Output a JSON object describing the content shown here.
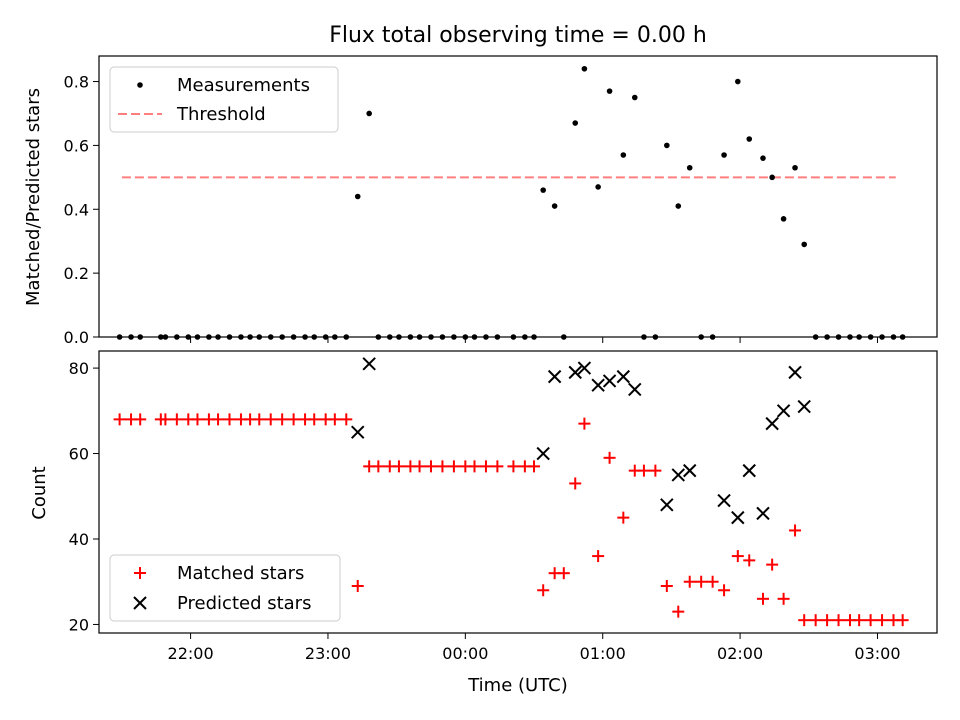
{
  "chart_data": [
    {
      "type": "scatter",
      "title": "Flux total observing time = 0.00 h",
      "xlabel": "",
      "ylabel": "Matched/Predicted stars",
      "ylim": [
        0,
        0.88
      ],
      "yticks": [
        "0.0",
        "0.2",
        "0.4",
        "0.6",
        "0.8"
      ],
      "xlim": [
        "21:20",
        "03:26"
      ],
      "legend_position": "upper left",
      "threshold": {
        "name": "Threshold",
        "value": 0.5,
        "x_range": [
          "21:30",
          "03:08"
        ],
        "color": "#ff7f7f",
        "style": "dashed"
      },
      "series": [
        {
          "name": "Measurements",
          "color": "#000000",
          "marker": "dot",
          "points": [
            [
              "21:29",
              0
            ],
            [
              "21:34",
              0
            ],
            [
              "21:38",
              0
            ],
            [
              "21:47",
              0
            ],
            [
              "21:49",
              0
            ],
            [
              "21:54",
              0
            ],
            [
              "21:59",
              0
            ],
            [
              "22:03",
              0
            ],
            [
              "22:08",
              0
            ],
            [
              "22:12",
              0
            ],
            [
              "22:17",
              0
            ],
            [
              "22:22",
              0
            ],
            [
              "22:26",
              0
            ],
            [
              "22:30",
              0
            ],
            [
              "22:35",
              0
            ],
            [
              "22:40",
              0
            ],
            [
              "22:45",
              0
            ],
            [
              "22:50",
              0
            ],
            [
              "22:54",
              0
            ],
            [
              "22:59",
              0
            ],
            [
              "23:03",
              0
            ],
            [
              "23:08",
              0
            ],
            [
              "23:13",
              0.44
            ],
            [
              "23:18",
              0.7
            ],
            [
              "23:22",
              0
            ],
            [
              "23:27",
              0
            ],
            [
              "23:31",
              0
            ],
            [
              "23:36",
              0
            ],
            [
              "23:40",
              0
            ],
            [
              "23:45",
              0
            ],
            [
              "23:50",
              0
            ],
            [
              "23:55",
              0
            ],
            [
              "00:00",
              0
            ],
            [
              "00:04",
              0
            ],
            [
              "00:09",
              0
            ],
            [
              "00:14",
              0
            ],
            [
              "00:21",
              0
            ],
            [
              "00:26",
              0
            ],
            [
              "00:30",
              0
            ],
            [
              "00:34",
              0.46
            ],
            [
              "00:39",
              0.41
            ],
            [
              "00:43",
              0
            ],
            [
              "00:48",
              0.67
            ],
            [
              "00:52",
              0.84
            ],
            [
              "00:58",
              0.47
            ],
            [
              "01:03",
              0.77
            ],
            [
              "01:09",
              0.57
            ],
            [
              "01:14",
              0.75
            ],
            [
              "01:18",
              0
            ],
            [
              "01:23",
              0
            ],
            [
              "01:28",
              0.6
            ],
            [
              "01:33",
              0.41
            ],
            [
              "01:38",
              0.53
            ],
            [
              "01:43",
              0
            ],
            [
              "01:48",
              0
            ],
            [
              "01:53",
              0.57
            ],
            [
              "01:59",
              0.8
            ],
            [
              "02:04",
              0.62
            ],
            [
              "02:10",
              0.56
            ],
            [
              "02:14",
              0.5
            ],
            [
              "02:19",
              0.37
            ],
            [
              "02:24",
              0.53
            ],
            [
              "02:28",
              0.29
            ],
            [
              "02:33",
              0
            ],
            [
              "02:38",
              0
            ],
            [
              "02:43",
              0
            ],
            [
              "02:48",
              0
            ],
            [
              "02:52",
              0
            ],
            [
              "02:57",
              0
            ],
            [
              "03:02",
              0
            ],
            [
              "03:07",
              0
            ],
            [
              "03:11",
              0
            ]
          ]
        }
      ]
    },
    {
      "type": "scatter",
      "title": "",
      "xlabel": "Time (UTC)",
      "ylabel": "Count",
      "ylim": [
        18,
        84
      ],
      "yticks": [
        "20",
        "40",
        "60",
        "80"
      ],
      "xlim": [
        "21:20",
        "03:26"
      ],
      "xticks": [
        "22:00",
        "23:00",
        "00:00",
        "01:00",
        "02:00",
        "03:00"
      ],
      "legend_position": "lower left",
      "series": [
        {
          "name": "Matched stars",
          "color": "#ff0000",
          "marker": "plus",
          "points": [
            [
              "21:29",
              68
            ],
            [
              "21:34",
              68
            ],
            [
              "21:38",
              68
            ],
            [
              "21:47",
              68
            ],
            [
              "21:49",
              68
            ],
            [
              "21:54",
              68
            ],
            [
              "21:59",
              68
            ],
            [
              "22:03",
              68
            ],
            [
              "22:08",
              68
            ],
            [
              "22:12",
              68
            ],
            [
              "22:17",
              68
            ],
            [
              "22:22",
              68
            ],
            [
              "22:26",
              68
            ],
            [
              "22:30",
              68
            ],
            [
              "22:35",
              68
            ],
            [
              "22:40",
              68
            ],
            [
              "22:45",
              68
            ],
            [
              "22:50",
              68
            ],
            [
              "22:54",
              68
            ],
            [
              "22:59",
              68
            ],
            [
              "23:03",
              68
            ],
            [
              "23:08",
              68
            ],
            [
              "23:13",
              29
            ],
            [
              "23:18",
              57
            ],
            [
              "23:22",
              57
            ],
            [
              "23:27",
              57
            ],
            [
              "23:31",
              57
            ],
            [
              "23:36",
              57
            ],
            [
              "23:40",
              57
            ],
            [
              "23:45",
              57
            ],
            [
              "23:50",
              57
            ],
            [
              "23:55",
              57
            ],
            [
              "00:00",
              57
            ],
            [
              "00:04",
              57
            ],
            [
              "00:09",
              57
            ],
            [
              "00:14",
              57
            ],
            [
              "00:21",
              57
            ],
            [
              "00:26",
              57
            ],
            [
              "00:30",
              57
            ],
            [
              "00:34",
              28
            ],
            [
              "00:39",
              32
            ],
            [
              "00:43",
              32
            ],
            [
              "00:48",
              53
            ],
            [
              "00:52",
              67
            ],
            [
              "00:58",
              36
            ],
            [
              "01:03",
              59
            ],
            [
              "01:09",
              45
            ],
            [
              "01:14",
              56
            ],
            [
              "01:18",
              56
            ],
            [
              "01:23",
              56
            ],
            [
              "01:28",
              29
            ],
            [
              "01:33",
              23
            ],
            [
              "01:38",
              30
            ],
            [
              "01:43",
              30
            ],
            [
              "01:48",
              30
            ],
            [
              "01:53",
              28
            ],
            [
              "01:59",
              36
            ],
            [
              "02:04",
              35
            ],
            [
              "02:10",
              26
            ],
            [
              "02:14",
              34
            ],
            [
              "02:19",
              26
            ],
            [
              "02:24",
              42
            ],
            [
              "02:28",
              21
            ],
            [
              "02:33",
              21
            ],
            [
              "02:38",
              21
            ],
            [
              "02:43",
              21
            ],
            [
              "02:48",
              21
            ],
            [
              "02:52",
              21
            ],
            [
              "02:57",
              21
            ],
            [
              "03:02",
              21
            ],
            [
              "03:07",
              21
            ],
            [
              "03:11",
              21
            ]
          ]
        },
        {
          "name": "Predicted stars",
          "color": "#000000",
          "marker": "x",
          "points": [
            [
              "23:13",
              65
            ],
            [
              "23:18",
              81
            ],
            [
              "00:34",
              60
            ],
            [
              "00:39",
              78
            ],
            [
              "00:48",
              79
            ],
            [
              "00:52",
              80
            ],
            [
              "00:58",
              76
            ],
            [
              "01:03",
              77
            ],
            [
              "01:09",
              78
            ],
            [
              "01:14",
              75
            ],
            [
              "01:28",
              48
            ],
            [
              "01:33",
              55
            ],
            [
              "01:38",
              56
            ],
            [
              "01:53",
              49
            ],
            [
              "01:59",
              45
            ],
            [
              "02:04",
              56
            ],
            [
              "02:10",
              46
            ],
            [
              "02:14",
              67
            ],
            [
              "02:19",
              70
            ],
            [
              "02:24",
              79
            ],
            [
              "02:28",
              71
            ]
          ]
        }
      ]
    }
  ]
}
